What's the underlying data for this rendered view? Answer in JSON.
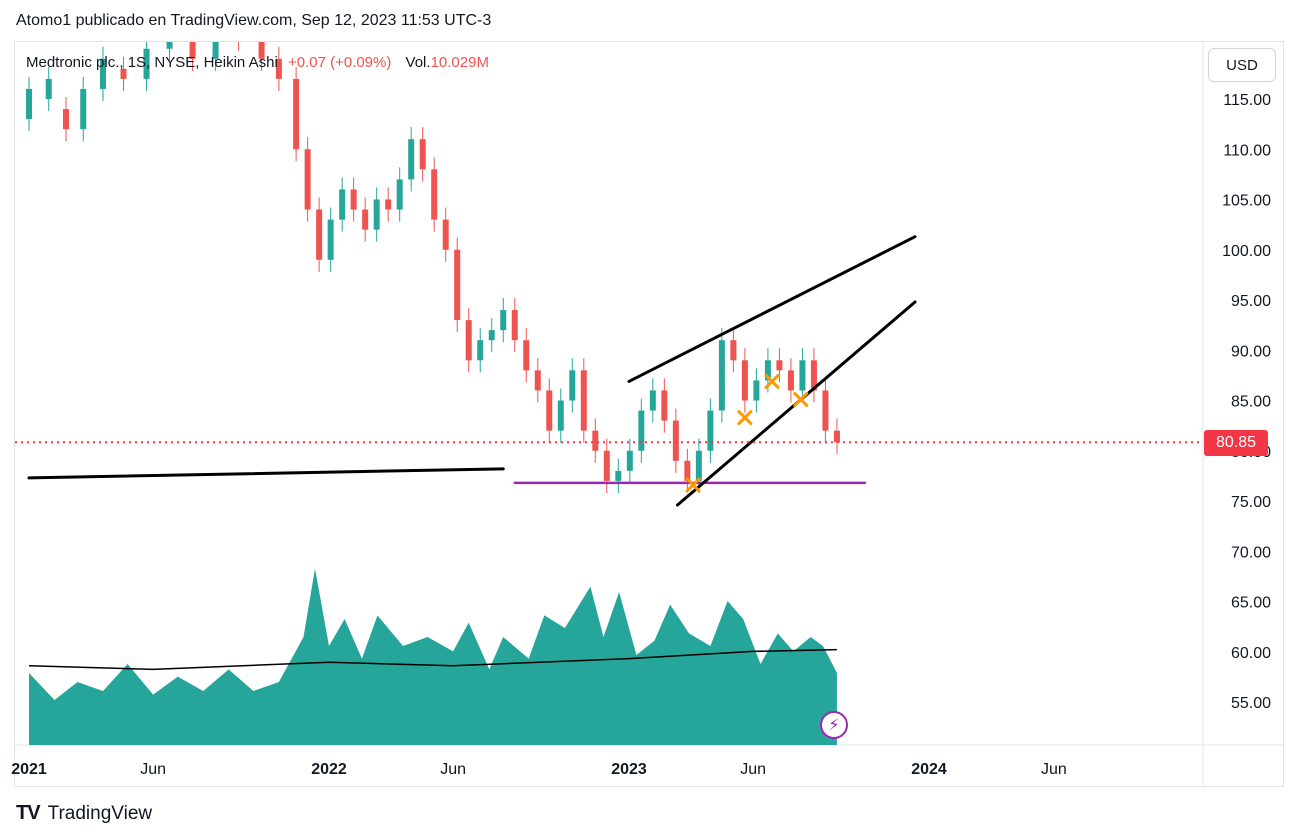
{
  "header": {
    "attribution": "Atomo1 publicado en TradingView.com, Sep 12, 2023 11:53 UTC-3"
  },
  "legend": {
    "symbol": "Medtronic plc., 1S, NYSE, Heikin Ashi",
    "change": "+0.07 (+0.09%)",
    "volume_label": "Vol.",
    "volume_value": "10.029M"
  },
  "currency_button": "USD",
  "last_price": "80.85",
  "footer": {
    "brand": "TradingView",
    "logo_icon": "tradingview-logo-icon"
  },
  "colors": {
    "up": "#26a69a",
    "down": "#ef5350",
    "volume_fill": "#26a69a",
    "support_line": "#9c27b0",
    "price_line": "#f23645",
    "marker": "#ff9800",
    "trendline": "#000000"
  },
  "chart_data": {
    "type": "candlestick",
    "style": "Heikin Ashi",
    "interval": "1S",
    "ylim": [
      50,
      118
    ],
    "y_ticks": [
      "115.00",
      "110.00",
      "105.00",
      "100.00",
      "95.00",
      "90.00",
      "85.00",
      "80.00",
      "75.00",
      "70.00",
      "65.00",
      "60.00",
      "55.00"
    ],
    "x_ticks": [
      "2021",
      "Jun",
      "2022",
      "Jun",
      "2023",
      "Jun",
      "2024",
      "Jun"
    ],
    "x_tick_dates": [
      "2021-01-01",
      "2021-06-01",
      "2022-01-01",
      "2022-06-01",
      "2023-01-01",
      "2023-06-01",
      "2024-01-01",
      "2024-06-01"
    ],
    "candles": [
      [
        "2021-01-01",
        113,
        116
      ],
      [
        "2021-01-25",
        115,
        117
      ],
      [
        "2021-02-15",
        114,
        112
      ],
      [
        "2021-03-08",
        112,
        116
      ],
      [
        "2021-04-01",
        116,
        119
      ],
      [
        "2021-04-26",
        118,
        117
      ],
      [
        "2021-05-24",
        117,
        120
      ],
      [
        "2021-06-21",
        120,
        121
      ],
      [
        "2021-07-19",
        121,
        119
      ],
      [
        "2021-08-16",
        119,
        123
      ],
      [
        "2021-09-13",
        123,
        121
      ],
      [
        "2021-10-11",
        121,
        119
      ],
      [
        "2021-11-01",
        119,
        117
      ],
      [
        "2021-11-22",
        117,
        110
      ],
      [
        "2021-12-06",
        110,
        104
      ],
      [
        "2021-12-20",
        104,
        99
      ],
      [
        "2022-01-03",
        99,
        103
      ],
      [
        "2022-01-17",
        103,
        106
      ],
      [
        "2022-01-31",
        106,
        104
      ],
      [
        "2022-02-14",
        104,
        102
      ],
      [
        "2022-02-28",
        102,
        105
      ],
      [
        "2022-03-14",
        105,
        104
      ],
      [
        "2022-03-28",
        104,
        107
      ],
      [
        "2022-04-11",
        107,
        111
      ],
      [
        "2022-04-25",
        111,
        108
      ],
      [
        "2022-05-09",
        108,
        103
      ],
      [
        "2022-05-23",
        103,
        100
      ],
      [
        "2022-06-06",
        100,
        93
      ],
      [
        "2022-06-20",
        93,
        89
      ],
      [
        "2022-07-04",
        89,
        91
      ],
      [
        "2022-07-18",
        91,
        92
      ],
      [
        "2022-08-01",
        92,
        94
      ],
      [
        "2022-08-15",
        94,
        91
      ],
      [
        "2022-08-29",
        91,
        88
      ],
      [
        "2022-09-12",
        88,
        86
      ],
      [
        "2022-09-26",
        86,
        82
      ],
      [
        "2022-10-10",
        82,
        85
      ],
      [
        "2022-10-24",
        85,
        88
      ],
      [
        "2022-11-07",
        88,
        82
      ],
      [
        "2022-11-21",
        82,
        80
      ],
      [
        "2022-12-05",
        80,
        77
      ],
      [
        "2022-12-19",
        77,
        78
      ],
      [
        "2023-01-02",
        78,
        80
      ],
      [
        "2023-01-16",
        80,
        84
      ],
      [
        "2023-01-30",
        84,
        86
      ],
      [
        "2023-02-13",
        86,
        83
      ],
      [
        "2023-02-27",
        83,
        79
      ],
      [
        "2023-03-13",
        79,
        77
      ],
      [
        "2023-03-27",
        77,
        80
      ],
      [
        "2023-04-10",
        80,
        84
      ],
      [
        "2023-04-24",
        84,
        91
      ],
      [
        "2023-05-08",
        91,
        89
      ],
      [
        "2023-05-22",
        89,
        85
      ],
      [
        "2023-06-05",
        85,
        87
      ],
      [
        "2023-06-19",
        87,
        89
      ],
      [
        "2023-07-03",
        89,
        88
      ],
      [
        "2023-07-17",
        88,
        86
      ],
      [
        "2023-07-31",
        86,
        89
      ],
      [
        "2023-08-14",
        89,
        86
      ],
      [
        "2023-08-28",
        86,
        82
      ],
      [
        "2023-09-11",
        82,
        80.85
      ]
    ],
    "volume": {
      "max_reference": 100,
      "values": [
        [
          "2021-01-01",
          40
        ],
        [
          "2021-02-01",
          25
        ],
        [
          "2021-03-01",
          35
        ],
        [
          "2021-04-01",
          30
        ],
        [
          "2021-05-01",
          45
        ],
        [
          "2021-06-01",
          28
        ],
        [
          "2021-07-01",
          38
        ],
        [
          "2021-08-01",
          30
        ],
        [
          "2021-09-01",
          42
        ],
        [
          "2021-10-01",
          30
        ],
        [
          "2021-11-01",
          35
        ],
        [
          "2021-12-01",
          60
        ],
        [
          "2021-12-15",
          98
        ],
        [
          "2022-01-01",
          55
        ],
        [
          "2022-01-20",
          70
        ],
        [
          "2022-02-10",
          48
        ],
        [
          "2022-03-01",
          72
        ],
        [
          "2022-04-01",
          55
        ],
        [
          "2022-05-01",
          60
        ],
        [
          "2022-06-01",
          52
        ],
        [
          "2022-06-20",
          68
        ],
        [
          "2022-07-15",
          42
        ],
        [
          "2022-08-01",
          60
        ],
        [
          "2022-09-01",
          48
        ],
        [
          "2022-09-20",
          72
        ],
        [
          "2022-10-15",
          65
        ],
        [
          "2022-11-15",
          88
        ],
        [
          "2022-12-01",
          60
        ],
        [
          "2022-12-20",
          85
        ],
        [
          "2023-01-10",
          50
        ],
        [
          "2023-02-01",
          58
        ],
        [
          "2023-02-20",
          78
        ],
        [
          "2023-03-15",
          62
        ],
        [
          "2023-04-10",
          55
        ],
        [
          "2023-05-01",
          80
        ],
        [
          "2023-05-20",
          70
        ],
        [
          "2023-06-10",
          45
        ],
        [
          "2023-07-01",
          62
        ],
        [
          "2023-07-20",
          52
        ],
        [
          "2023-08-10",
          60
        ],
        [
          "2023-08-25",
          55
        ],
        [
          "2023-09-11",
          40
        ]
      ],
      "moving_average": [
        [
          "2021-01-01",
          44
        ],
        [
          "2021-06-01",
          42
        ],
        [
          "2022-01-01",
          46
        ],
        [
          "2022-06-01",
          44
        ],
        [
          "2023-01-01",
          48
        ],
        [
          "2023-06-01",
          52
        ],
        [
          "2023-09-11",
          53
        ]
      ]
    },
    "drawings": {
      "flat_line": [
        [
          "2021-01-01",
          77.3
        ],
        [
          "2022-08-01",
          78.2
        ]
      ],
      "support_line": [
        [
          "2022-08-15",
          76.8
        ],
        [
          "2023-10-15",
          76.8
        ]
      ],
      "channel_upper": [
        [
          "2023-01-01",
          86.9
        ],
        [
          "2023-12-15",
          101.3
        ]
      ],
      "channel_lower": [
        [
          "2023-03-01",
          74.6
        ],
        [
          "2023-12-15",
          94.8
        ]
      ],
      "markers": [
        [
          "2023-03-20",
          76.6
        ],
        [
          "2023-05-22",
          83.3
        ],
        [
          "2023-06-24",
          86.9
        ],
        [
          "2023-07-29",
          85.1
        ]
      ]
    },
    "last_price_value": 80.85
  }
}
